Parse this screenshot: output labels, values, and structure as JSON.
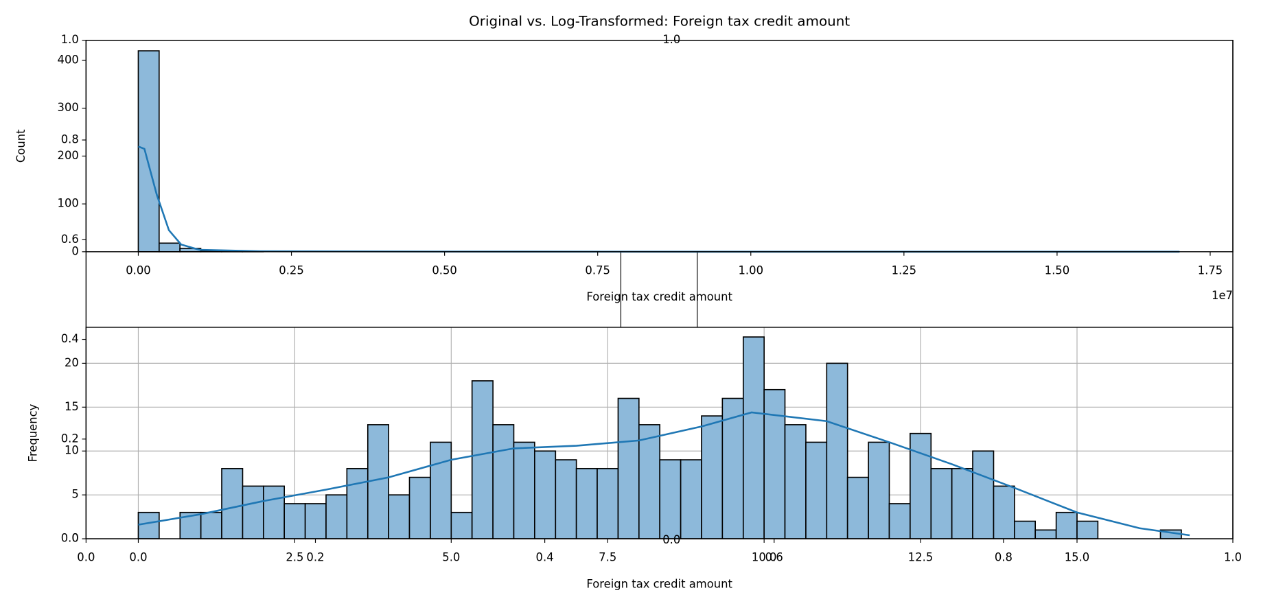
{
  "chart_data": [
    {
      "type": "histogram",
      "title": "Original vs. Log-Transformed: Foreign tax credit amount",
      "xlabel": "Foreign tax credit amount",
      "ylabel": "Count",
      "offset_text": "1e7",
      "bins": [
        0,
        340000,
        680000,
        1020000,
        1360000,
        1700000,
        2040000,
        2380000,
        2720000,
        3060000,
        3400000,
        3740000,
        4080000,
        4420000,
        4760000,
        5100000,
        5440000,
        5780000,
        6120000,
        6460000,
        6800000,
        7140000,
        7480000,
        7820000,
        8160000,
        8500000,
        8840000,
        9180000,
        9520000,
        9860000,
        10200000,
        10540000,
        10880000,
        11220000,
        11560000,
        11900000,
        12240000,
        12580000,
        12920000,
        13260000,
        13600000,
        13940000,
        14280000,
        14620000,
        14960000,
        15300000,
        15640000,
        15980000,
        16320000,
        16660000,
        17000000
      ],
      "counts": [
        420,
        18,
        7,
        2,
        1,
        1,
        0,
        0,
        0,
        0,
        0,
        0,
        0,
        0,
        0,
        0,
        0,
        0,
        0,
        0,
        0,
        0,
        0,
        0,
        0,
        0,
        0,
        0,
        0,
        0,
        0,
        0,
        0,
        0,
        0,
        0,
        0,
        0,
        0,
        0,
        0,
        0,
        0,
        0,
        0,
        0,
        0,
        0,
        0,
        0
      ],
      "color": "#8db9da",
      "edgecolor": "#000000",
      "kde": {
        "x": [
          0,
          100000,
          300000,
          500000,
          700000,
          1000000,
          2000000,
          5000000,
          10000000,
          17000000
        ],
        "values": [
          220,
          215,
          120,
          45,
          15,
          4,
          1,
          0.3,
          0,
          0
        ],
        "color": "#1f77b4"
      },
      "xlim": [
        -853000,
        17870000
      ],
      "ylim": [
        0,
        442
      ],
      "xticks": [
        {
          "value": 0,
          "label": "0.00"
        },
        {
          "value": 2500000,
          "label": "0.25"
        },
        {
          "value": 5000000,
          "label": "0.50"
        },
        {
          "value": 7500000,
          "label": "0.75"
        },
        {
          "value": 10000000,
          "label": "1.00"
        },
        {
          "value": 12500000,
          "label": "1.25"
        },
        {
          "value": 15000000,
          "label": "1.50"
        },
        {
          "value": 17500000,
          "label": "1.75"
        }
      ],
      "yticks": [
        0,
        100,
        200,
        300,
        400
      ],
      "grid": false
    },
    {
      "type": "histogram",
      "xlabel": "Foreign tax credit amount",
      "ylabel": "Frequency",
      "bins": [
        0,
        0.333,
        0.667,
        1,
        1.333,
        1.667,
        2,
        2.333,
        2.667,
        3,
        3.333,
        3.667,
        4,
        4.333,
        4.667,
        5,
        5.333,
        5.667,
        6,
        6.333,
        6.667,
        7,
        7.333,
        7.667,
        8,
        8.333,
        8.667,
        9,
        9.333,
        9.667,
        10,
        10.333,
        10.667,
        11,
        11.333,
        11.667,
        12,
        12.333,
        12.667,
        13,
        13.333,
        13.667,
        14,
        14.333,
        14.667,
        15,
        15.333,
        15.667,
        16,
        16.333,
        16.667
      ],
      "counts": [
        3,
        0,
        3,
        3,
        8,
        6,
        6,
        4,
        4,
        5,
        8,
        13,
        5,
        7,
        11,
        3,
        18,
        13,
        11,
        10,
        9,
        8,
        8,
        16,
        13,
        9,
        9,
        14,
        16,
        23,
        17,
        13,
        11,
        20,
        7,
        11,
        4,
        12,
        8,
        8,
        10,
        6,
        2,
        1,
        3,
        2,
        0,
        0,
        0,
        1
      ],
      "color": "#8db9da",
      "edgecolor": "#000000",
      "kde": {
        "x": [
          0,
          1,
          2,
          3,
          4,
          5,
          6,
          7,
          8,
          9,
          9.8,
          11,
          12,
          13,
          14,
          15,
          16,
          16.8
        ],
        "values": [
          1.6,
          2.8,
          4.3,
          5.6,
          7,
          9,
          10.3,
          10.6,
          11.2,
          12.8,
          14.4,
          13.4,
          11,
          8.5,
          5.8,
          3,
          1.2,
          0.4
        ],
        "color": "#1f77b4"
      },
      "xlim": [
        -0.835,
        17.49
      ],
      "ylim": [
        0,
        24.1
      ],
      "xticks": [
        {
          "value": 0,
          "label": "0.0"
        },
        {
          "value": 2.5,
          "label": "2.5"
        },
        {
          "value": 5,
          "label": "5.0"
        },
        {
          "value": 7.5,
          "label": "7.5"
        },
        {
          "value": 10,
          "label": "10.0"
        },
        {
          "value": 12.5,
          "label": "12.5"
        },
        {
          "value": 15,
          "label": "15.0"
        }
      ],
      "yticks": [
        0,
        5,
        10,
        15,
        20
      ],
      "grid": true
    },
    {
      "type": "blank",
      "xlim": [
        0,
        1
      ],
      "ylim": [
        0,
        1
      ],
      "xticks": [
        {
          "value": 0,
          "label": "0.0"
        },
        {
          "value": 0.2,
          "label": "0.2"
        },
        {
          "value": 0.4,
          "label": "0.4"
        },
        {
          "value": 0.6,
          "label": "0.6"
        },
        {
          "value": 0.8,
          "label": "0.8"
        },
        {
          "value": 1,
          "label": "1.0"
        }
      ],
      "yticks": [
        {
          "value": 0,
          "label": "0.0"
        },
        {
          "value": 0.2,
          "label": "0.2"
        },
        {
          "value": 0.4,
          "label": "0.4"
        },
        {
          "value": 0.6,
          "label": "0.6"
        },
        {
          "value": 0.8,
          "label": "0.8"
        },
        {
          "value": 1,
          "label": "1.0"
        }
      ],
      "annotations": [
        "1.0",
        "0.0"
      ]
    }
  ]
}
